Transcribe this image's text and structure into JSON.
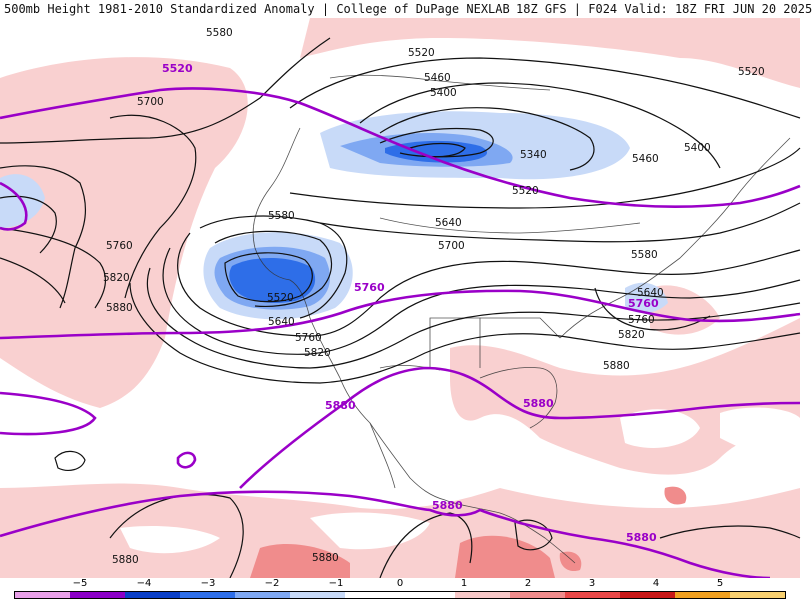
{
  "header": {
    "left_title": "500mb Height 1981-2010 Standardized Anomaly | College of DuPage NEXLAB",
    "right_title": "18Z GFS | F024 Valid: 18Z FRI JUN 20 2025"
  },
  "contour_labels": {
    "l5580_top": "5580",
    "l5520_purple": "5520",
    "l5520_top": "5520",
    "l5460_a": "5460",
    "l5400_a": "5400",
    "l5520_right": "5520",
    "l5700_left": "5700",
    "l5400_right": "5400",
    "l5340": "5340",
    "l5460_b": "5460",
    "l5520_mid": "5520",
    "l5580_bc": "5580",
    "l5640_mid": "5640",
    "l5700_mid": "5700",
    "l5760_left": "5760",
    "l5820_left": "5820",
    "l5880_left": "5880",
    "l5520_low": "5520",
    "l5640_low": "5640",
    "l5760_purple": "5760",
    "l5760_low": "5760",
    "l5820_low": "5820",
    "l5580_east": "5580",
    "l5640_east": "5640",
    "l5760_east_purple": "5760",
    "l5760_east": "5760",
    "l5820_east": "5820",
    "l5880_east": "5880",
    "l5880_gulf_a": "5880",
    "l5880_gulf_b": "5880",
    "l5880_carib_a": "5880",
    "l5880_carib_b": "5880",
    "l5880_sw_a": "5880",
    "l5880_sw_b": "5880"
  },
  "colorbar": {
    "ticks": [
      "−5",
      "−4",
      "−3",
      "−2",
      "−1",
      "0",
      "1",
      "2",
      "3",
      "4",
      "5"
    ],
    "colors": [
      "#e8a0e8",
      "#8b00c8",
      "#0a3fc8",
      "#2e6ee8",
      "#7fa8f2",
      "#c8daf8",
      "#ffffff",
      "#ffffff",
      "#f7c8c8",
      "#f08c8c",
      "#e84848",
      "#c81818",
      "#f0a020",
      "#f8d070"
    ]
  }
}
